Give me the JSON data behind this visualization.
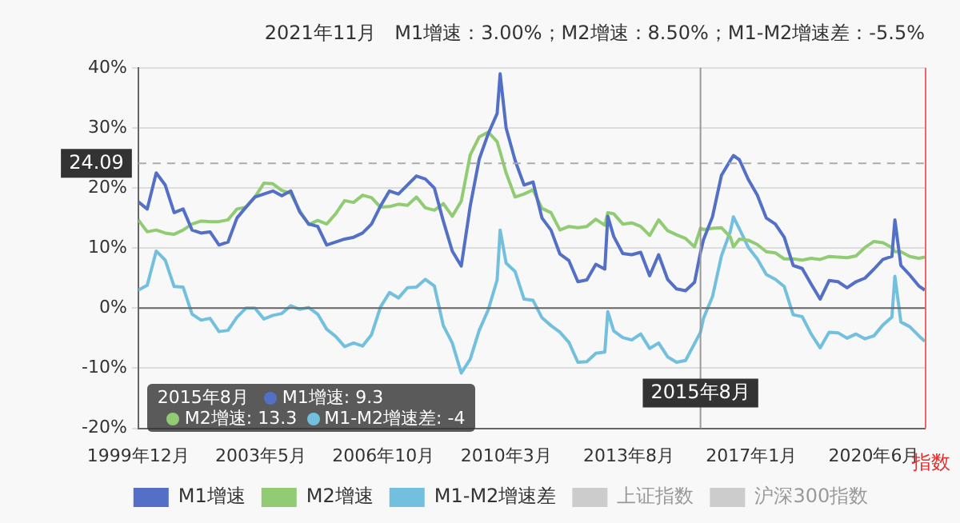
{
  "chart_data": {
    "type": "line",
    "title": "2021年11月   M1增速：3.00%；M2增速：8.50%；M1-M2增速差：-5.5%",
    "y2label": "指数",
    "x": [
      "1999-12",
      "2000-03",
      "2000-06",
      "2000-09",
      "2000-12",
      "2001-03",
      "2001-06",
      "2001-09",
      "2001-12",
      "2002-03",
      "2002-06",
      "2002-09",
      "2002-12",
      "2003-03",
      "2003-06",
      "2003-09",
      "2003-12",
      "2004-03",
      "2004-06",
      "2004-09",
      "2004-12",
      "2005-03",
      "2005-06",
      "2005-09",
      "2005-12",
      "2006-03",
      "2006-06",
      "2006-09",
      "2006-12",
      "2007-03",
      "2007-06",
      "2007-09",
      "2007-12",
      "2008-03",
      "2008-06",
      "2008-09",
      "2008-12",
      "2009-03",
      "2009-06",
      "2009-09",
      "2009-12",
      "2010-01",
      "2010-03",
      "2010-06",
      "2010-09",
      "2010-12",
      "2011-03",
      "2011-06",
      "2011-09",
      "2011-12",
      "2012-03",
      "2012-06",
      "2012-09",
      "2012-12",
      "2013-01",
      "2013-03",
      "2013-06",
      "2013-09",
      "2013-12",
      "2014-03",
      "2014-06",
      "2014-09",
      "2014-12",
      "2015-03",
      "2015-06",
      "2015-08",
      "2015-09",
      "2015-12",
      "2016-03",
      "2016-06",
      "2016-07",
      "2016-09",
      "2016-12",
      "2017-03",
      "2017-06",
      "2017-09",
      "2017-12",
      "2018-03",
      "2018-06",
      "2018-09",
      "2018-12",
      "2019-03",
      "2019-06",
      "2019-09",
      "2019-12",
      "2020-03",
      "2020-06",
      "2020-09",
      "2020-12",
      "2021-01",
      "2021-03",
      "2021-06",
      "2021-09",
      "2021-11"
    ],
    "series": [
      {
        "name": "M1增速",
        "color": "#5470c6",
        "values": [
          17.7,
          16.5,
          22.5,
          20.5,
          15.9,
          16.5,
          13.0,
          12.5,
          12.7,
          10.5,
          11.0,
          15.0,
          16.8,
          18.5,
          19.0,
          19.5,
          18.7,
          19.5,
          16.0,
          14.0,
          13.6,
          10.5,
          11.0,
          11.5,
          11.8,
          12.5,
          14.0,
          17.0,
          19.5,
          19.0,
          20.5,
          22.0,
          21.5,
          20.0,
          14.5,
          9.5,
          7.0,
          17.0,
          24.8,
          29.0,
          32.4,
          39.0,
          30.0,
          24.6,
          20.5,
          21.0,
          15.0,
          13.0,
          9.0,
          7.9,
          4.4,
          4.7,
          7.3,
          6.5,
          15.3,
          11.9,
          9.1,
          8.9,
          9.3,
          5.4,
          8.9,
          4.8,
          3.2,
          2.9,
          4.3,
          9.3,
          11.4,
          15.2,
          22.1,
          24.6,
          25.4,
          24.7,
          21.4,
          18.8,
          15.0,
          14.0,
          11.8,
          7.1,
          6.6,
          4.0,
          1.5,
          4.6,
          4.4,
          3.4,
          4.4,
          5.0,
          6.5,
          8.1,
          8.6,
          14.7,
          7.1,
          5.5,
          3.7,
          3.0
        ]
      },
      {
        "name": "M2增速",
        "color": "#91cc75",
        "values": [
          14.7,
          12.7,
          13.0,
          12.5,
          12.3,
          13.0,
          14.0,
          14.5,
          14.4,
          14.4,
          14.7,
          16.5,
          16.8,
          18.5,
          20.8,
          20.7,
          19.6,
          19.1,
          16.2,
          13.9,
          14.6,
          14.0,
          15.7,
          17.9,
          17.6,
          18.8,
          18.4,
          16.8,
          16.9,
          17.3,
          17.1,
          18.5,
          16.7,
          16.3,
          17.4,
          15.3,
          17.8,
          25.5,
          28.5,
          29.3,
          27.7,
          26.0,
          22.5,
          18.5,
          19.0,
          19.7,
          16.6,
          15.9,
          13.0,
          13.6,
          13.4,
          13.6,
          14.8,
          13.8,
          15.9,
          15.7,
          14.0,
          14.2,
          13.6,
          12.1,
          14.7,
          12.9,
          12.2,
          11.6,
          10.2,
          13.3,
          13.1,
          13.3,
          13.4,
          11.8,
          10.2,
          11.5,
          11.3,
          10.6,
          9.4,
          9.2,
          8.2,
          8.2,
          8.0,
          8.3,
          8.1,
          8.6,
          8.5,
          8.4,
          8.7,
          10.1,
          11.1,
          10.9,
          10.1,
          9.4,
          9.4,
          8.6,
          8.3,
          8.5
        ]
      },
      {
        "name": "M1-M2增速差",
        "color": "#73c0de",
        "values": [
          3.0,
          3.8,
          9.5,
          8.0,
          3.6,
          3.5,
          -1.0,
          -2.0,
          -1.7,
          -3.9,
          -3.7,
          -1.5,
          0.0,
          0.0,
          -1.8,
          -1.2,
          -0.9,
          0.4,
          -0.2,
          0.1,
          -1.0,
          -3.5,
          -4.7,
          -6.4,
          -5.8,
          -6.3,
          -4.4,
          0.2,
          2.6,
          1.7,
          3.4,
          3.5,
          4.8,
          3.7,
          -2.9,
          -5.8,
          -10.8,
          -8.5,
          -3.7,
          -0.3,
          4.7,
          13.0,
          7.5,
          6.1,
          1.5,
          1.3,
          -1.6,
          -2.9,
          -4.0,
          -5.7,
          -9.0,
          -8.9,
          -7.5,
          -7.3,
          -0.6,
          -3.8,
          -4.9,
          -5.3,
          -4.3,
          -6.7,
          -5.8,
          -8.1,
          -9.0,
          -8.7,
          -5.9,
          -4.0,
          -1.7,
          1.9,
          8.7,
          12.8,
          15.2,
          13.2,
          10.1,
          8.2,
          5.6,
          4.8,
          3.6,
          -1.1,
          -1.4,
          -4.3,
          -6.6,
          -4.0,
          -4.1,
          -5.0,
          -4.3,
          -5.1,
          -4.6,
          -2.8,
          -1.5,
          5.3,
          -2.3,
          -3.1,
          -4.6,
          -5.5
        ]
      },
      {
        "name": "上证指数",
        "color": "#cccccc",
        "values": [
          null,
          null,
          null,
          null,
          null,
          null,
          null,
          null,
          null,
          null,
          null,
          null,
          null,
          null,
          null,
          null,
          null,
          null,
          null,
          null,
          null,
          null,
          null,
          null,
          null,
          null,
          null,
          null,
          null,
          null,
          null,
          null,
          null,
          null,
          null,
          null,
          null,
          null,
          null,
          null,
          null,
          null,
          null,
          null,
          null,
          null,
          null,
          null,
          null,
          null,
          null,
          null,
          null,
          null,
          null,
          null,
          null,
          null,
          null,
          null,
          null,
          null,
          null,
          null,
          null,
          null,
          null,
          null,
          null,
          null,
          null,
          null,
          null,
          null,
          null,
          null,
          null,
          null,
          null,
          null,
          null,
          null,
          null,
          null,
          null,
          null,
          null,
          null,
          null,
          null,
          null,
          null,
          null,
          null
        ]
      },
      {
        "name": "沪深300指数",
        "color": "#cccccc",
        "values": [
          null,
          null,
          null,
          null,
          null,
          null,
          null,
          null,
          null,
          null,
          null,
          null,
          null,
          null,
          null,
          null,
          null,
          null,
          null,
          null,
          null,
          null,
          null,
          null,
          null,
          null,
          null,
          null,
          null,
          null,
          null,
          null,
          null,
          null,
          null,
          null,
          null,
          null,
          null,
          null,
          null,
          null,
          null,
          null,
          null,
          null,
          null,
          null,
          null,
          null,
          null,
          null,
          null,
          null,
          null,
          null,
          null,
          null,
          null,
          null,
          null,
          null,
          null,
          null,
          null,
          null,
          null,
          null,
          null,
          null,
          null,
          null,
          null,
          null,
          null,
          null,
          null,
          null,
          null,
          null,
          null,
          null,
          null,
          null,
          null,
          null,
          null,
          null,
          null,
          null,
          null,
          null,
          null,
          null
        ]
      }
    ],
    "xlim": [
      "1999-12",
      "2021-11"
    ],
    "xticks": [
      {
        "value": "1999-12",
        "label": "1999年12月"
      },
      {
        "value": "2003-05",
        "label": "2003年5月"
      },
      {
        "value": "2006-10",
        "label": "2006年10月"
      },
      {
        "value": "2010-03",
        "label": "2010年3月"
      },
      {
        "value": "2013-08",
        "label": "2013年8月"
      },
      {
        "value": "2017-01",
        "label": "2017年1月"
      },
      {
        "value": "2020-06",
        "label": "2020年6月"
      }
    ],
    "ylim": [
      -20,
      40
    ],
    "yticks": [
      {
        "value": -20,
        "label": "-20%"
      },
      {
        "value": -10,
        "label": "-10%"
      },
      {
        "value": 0,
        "label": "0%"
      },
      {
        "value": 10,
        "label": "10%"
      },
      {
        "value": 20,
        "label": "20%"
      },
      {
        "value": 30,
        "label": "30%"
      },
      {
        "value": 40,
        "label": "40%"
      }
    ],
    "ref_lines": [
      {
        "axis": "y",
        "value": 24.09,
        "label": "24.09",
        "color": "#aaaaaa",
        "line_style": "dashed"
      },
      {
        "axis": "x",
        "value": "2015-08",
        "label": "2015年8月",
        "color": "#999999",
        "line_style": "solid"
      }
    ],
    "annotations": [
      "2015年8月",
      "M1增速: 9.3",
      "M2增速: 13.3",
      "M1-M2增速差: -4"
    ],
    "grid": "y",
    "legend": "bottom",
    "marker": "none",
    "line_style": "solid"
  }
}
